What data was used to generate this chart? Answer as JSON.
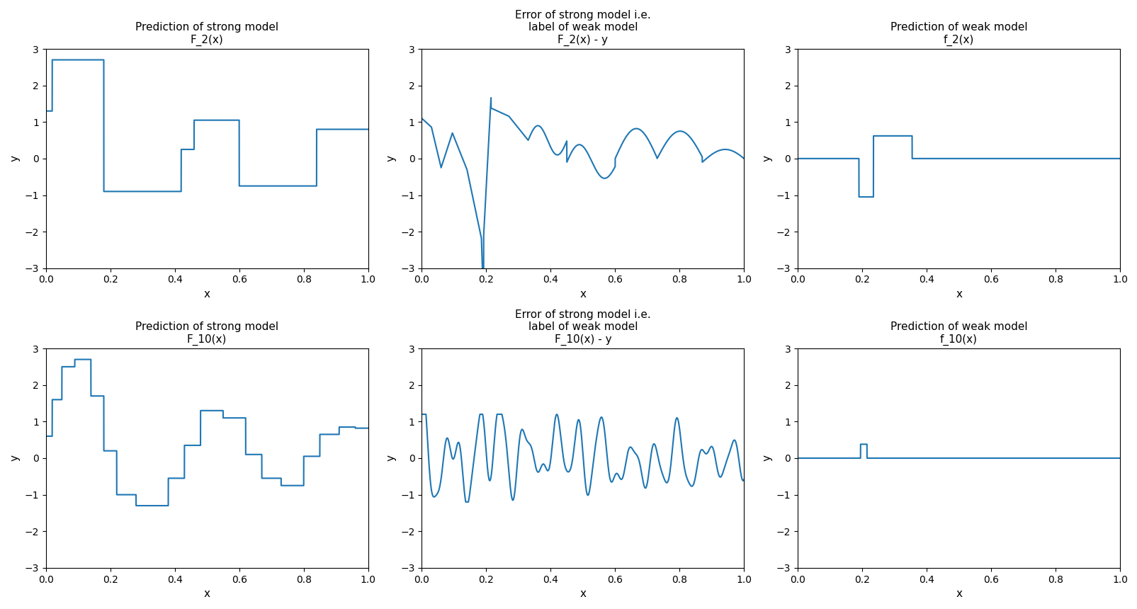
{
  "titles": [
    [
      "Prediction of strong model",
      "F_2(x)"
    ],
    [
      "Error of strong model i.e.\nlabel of weak model",
      "F_2(x) - y"
    ],
    [
      "Prediction of weak model",
      "f_2(x)"
    ],
    [
      "Prediction of strong model",
      "F_10(x)"
    ],
    [
      "Error of strong model i.e.\nlabel of weak model",
      "F_10(x) - y"
    ],
    [
      "Prediction of weak model",
      "f_10(x)"
    ]
  ],
  "line_color": "#1f77b4",
  "ylim": [
    -3,
    3
  ],
  "xlim": [
    0,
    1
  ],
  "xlabel": "x",
  "ylabel": "y",
  "bg_color": "#ffffff",
  "yticks": [
    -3,
    -2,
    -1,
    0,
    1,
    2,
    3
  ],
  "xticks": [
    0.0,
    0.2,
    0.4,
    0.6,
    0.8,
    1.0
  ]
}
